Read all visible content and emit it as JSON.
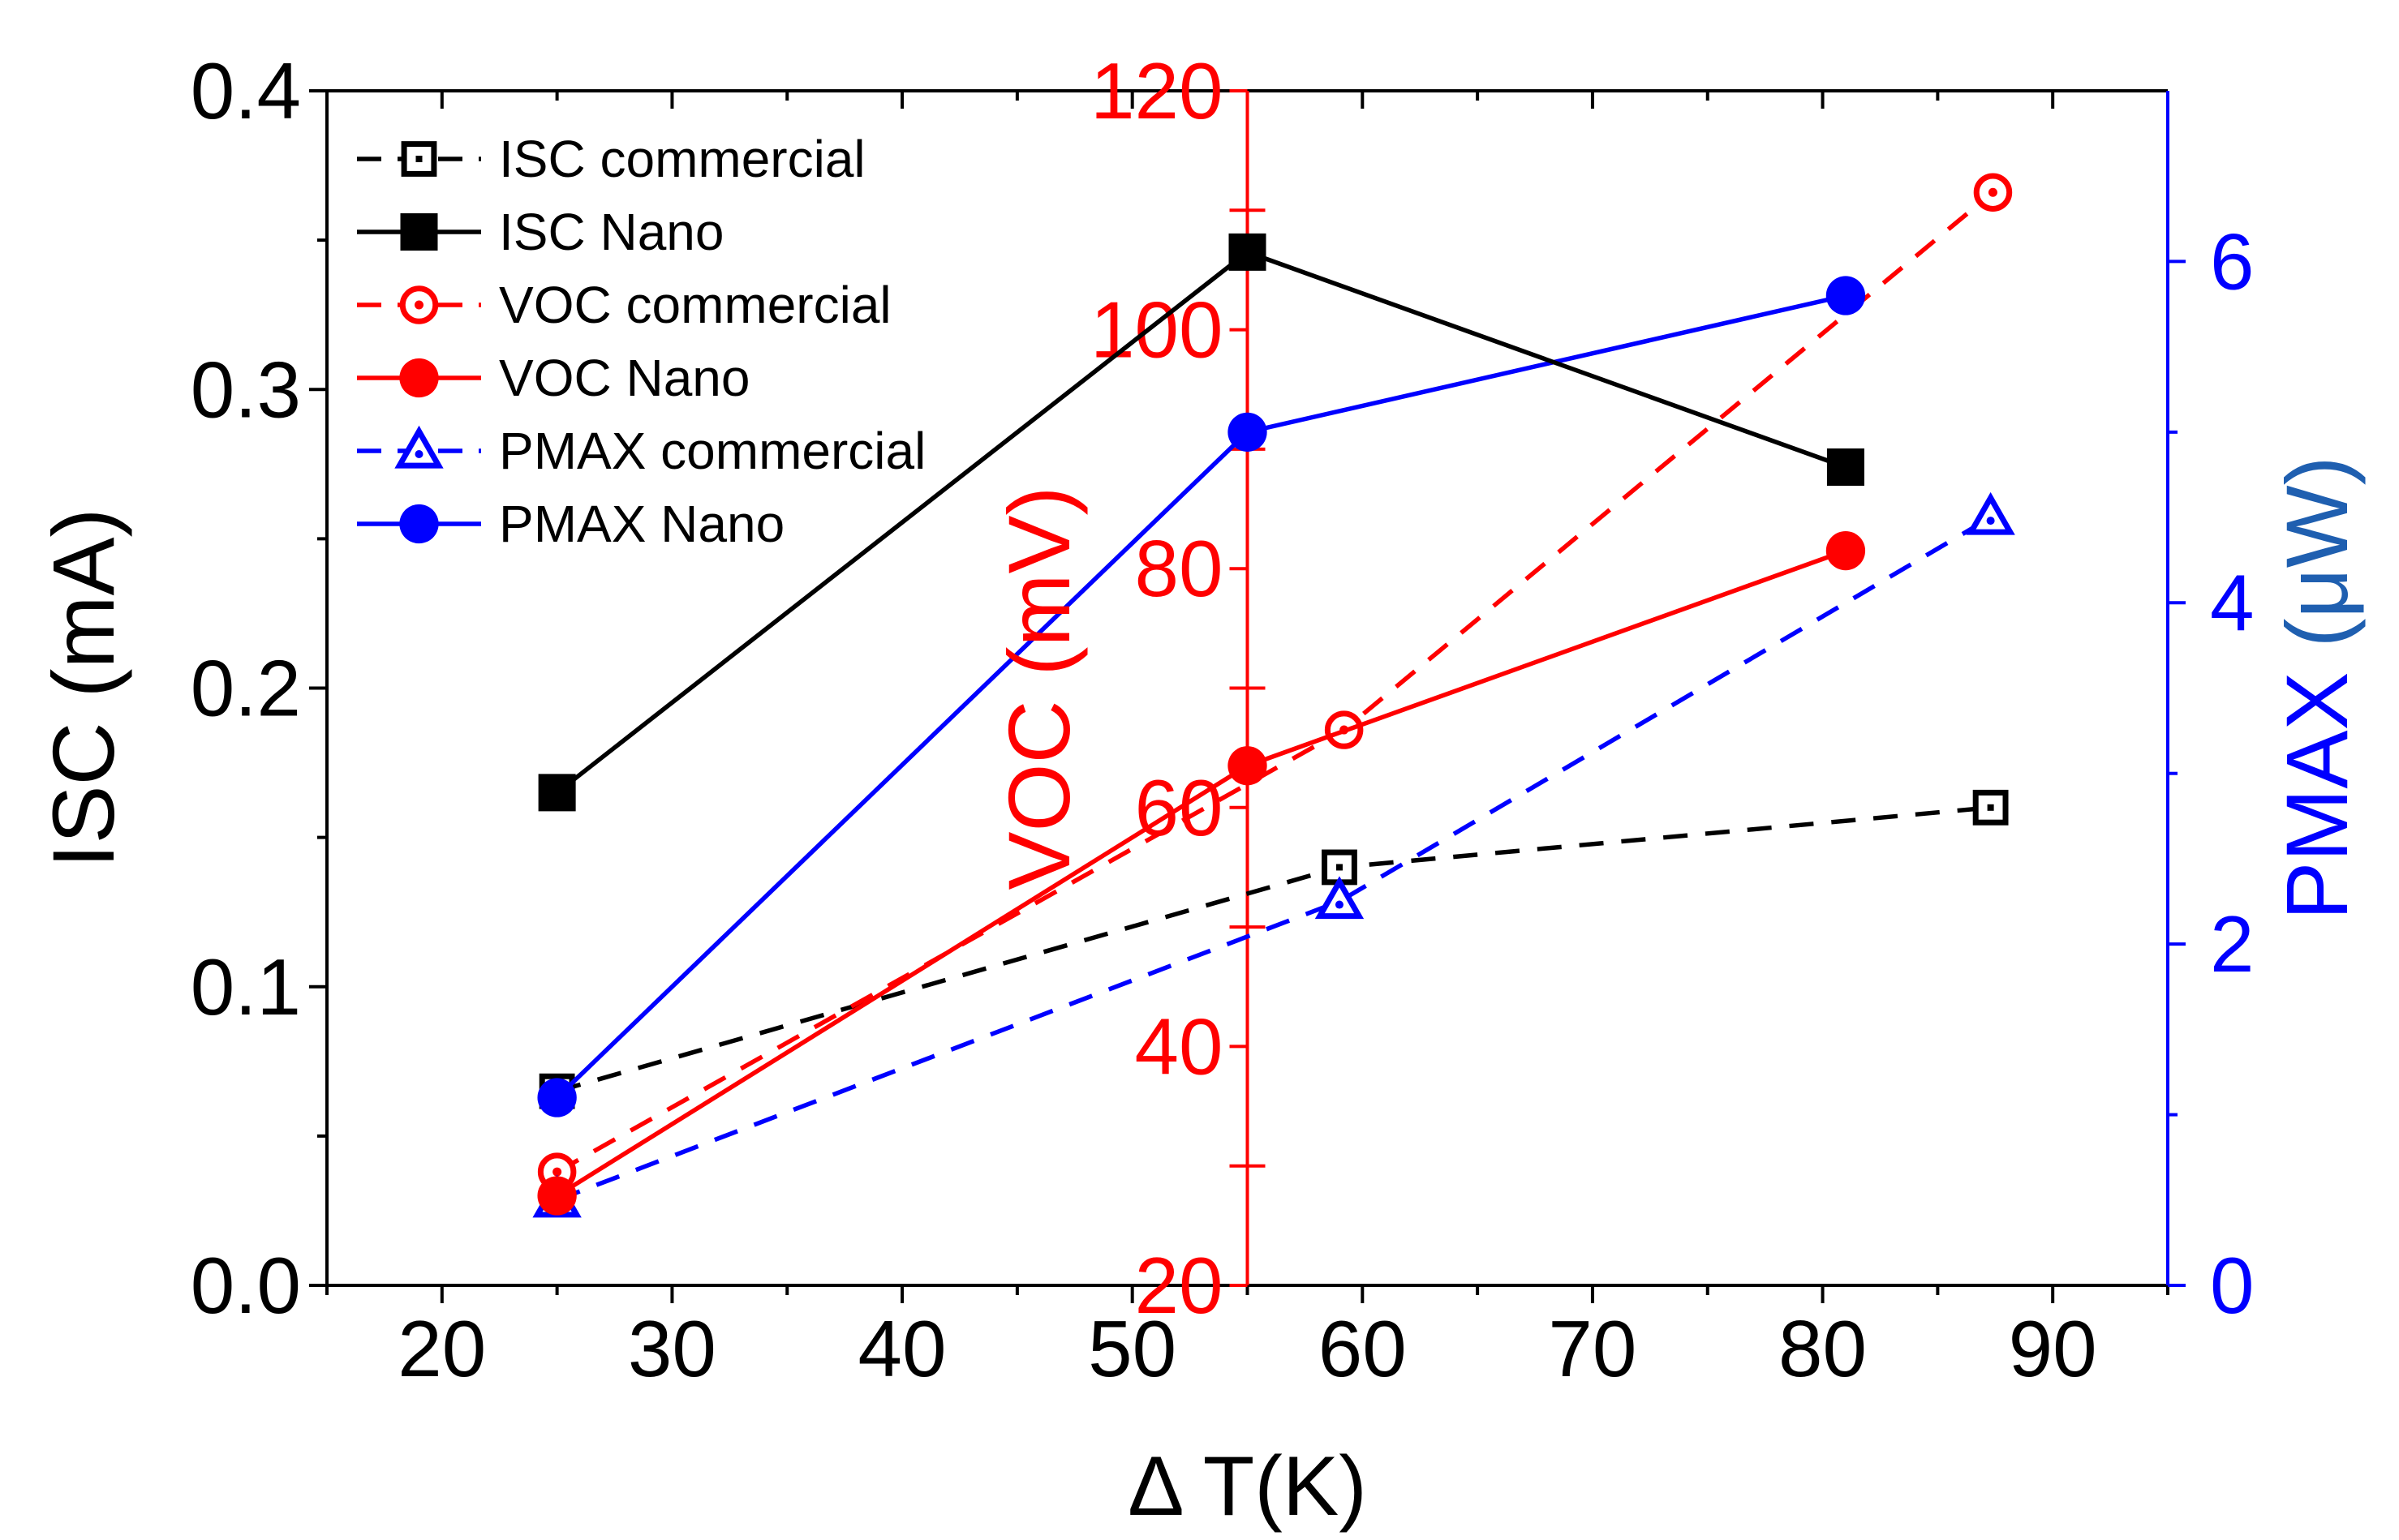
{
  "chart_data": {
    "type": "line",
    "xlabel": "Δ T(K)",
    "xlim": [
      15,
      95
    ],
    "xticks": [
      "20",
      "30",
      "40",
      "50",
      "60",
      "70",
      "80",
      "90"
    ],
    "axes": {
      "left": {
        "label": "ISC (mA)",
        "lim": [
          0,
          0.4
        ],
        "ticks": [
          "0.0",
          "0.1",
          "0.2",
          "0.3",
          "0.4"
        ],
        "color": "#000000"
      },
      "mid": {
        "label": "VOC (mV)",
        "lim": [
          20,
          120
        ],
        "ticks": [
          "20",
          "40",
          "60",
          "80",
          "100",
          "120"
        ],
        "color": "#ff0000",
        "position_x": 55
      },
      "right": {
        "label_main": "PMAX",
        "label_unit": "(μW)",
        "lim": [
          0,
          7
        ],
        "ticks": [
          "0",
          "2",
          "4",
          "6"
        ],
        "color": "#0000ff",
        "unit_color": "#1f5fb0"
      }
    },
    "series": [
      {
        "name": "ISC commercial",
        "axis": "left",
        "style": "dashed",
        "marker": "open-square",
        "color": "#000000",
        "x": [
          25,
          59,
          87.3
        ],
        "y": [
          0.065,
          0.14,
          0.16
        ]
      },
      {
        "name": "ISC Nano",
        "axis": "left",
        "style": "solid",
        "marker": "filled-square",
        "color": "#000000",
        "x": [
          25,
          55,
          81
        ],
        "y": [
          0.165,
          0.346,
          0.274
        ]
      },
      {
        "name": "VOC commercial",
        "axis": "mid",
        "style": "dashed",
        "marker": "open-circle",
        "color": "#ff0000",
        "x": [
          25,
          59.2,
          87.4
        ],
        "y": [
          29.5,
          66.5,
          111.5
        ]
      },
      {
        "name": "VOC Nano",
        "axis": "mid",
        "style": "solid",
        "marker": "filled-circle",
        "color": "#ff0000",
        "x": [
          25,
          55,
          81
        ],
        "y": [
          27.5,
          63.5,
          81.5
        ]
      },
      {
        "name": "PMAX commercial",
        "axis": "right",
        "style": "dashed",
        "marker": "open-triangle",
        "color": "#0000ff",
        "x": [
          25,
          59,
          87.3
        ],
        "y": [
          0.5,
          2.25,
          4.5
        ]
      },
      {
        "name": "PMAX Nano",
        "axis": "right",
        "style": "solid",
        "marker": "filled-circle",
        "color": "#0000ff",
        "x": [
          25,
          55,
          81
        ],
        "y": [
          1.1,
          5.0,
          5.8
        ]
      }
    ]
  }
}
